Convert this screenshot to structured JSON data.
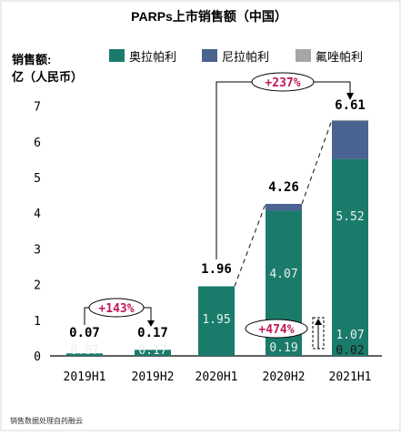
{
  "chart_data": {
    "type": "bar",
    "stacked": true,
    "title": "PARPs上市销售额（中国）",
    "ylabel_line1": "销售额:",
    "ylabel_line2": "亿（人民币）",
    "categories": [
      "2019H1",
      "2019H2",
      "2020H1",
      "2020H2",
      "2021H1"
    ],
    "series": [
      {
        "name": "奥拉帕利",
        "color": "#1a7b6b",
        "values": [
          0.07,
          0.17,
          1.95,
          4.07,
          5.52
        ],
        "labels": [
          "0.07",
          "0.17",
          "1.95",
          "4.07",
          "5.52"
        ]
      },
      {
        "name": "尼拉帕利",
        "color": "#4a6391",
        "values": [
          0,
          0,
          0,
          0.19,
          1.07
        ],
        "labels": [
          "",
          "",
          "",
          "0.19",
          "1.07"
        ]
      },
      {
        "name": "氟唑帕利",
        "color": "#a6a6a6",
        "values": [
          0,
          0,
          0,
          0,
          0.02
        ],
        "labels": [
          "",
          "",
          "",
          "",
          "0.02"
        ]
      }
    ],
    "totals": [
      "0.07",
      "0.17",
      "1.96",
      "4.26",
      "6.61"
    ],
    "ylim": [
      0,
      7
    ],
    "yticks": [
      "0",
      "1",
      "2",
      "3",
      "4",
      "5",
      "6",
      "7"
    ],
    "legend_position": "top",
    "annotations": [
      "+143%",
      "+237%",
      "+474%"
    ],
    "source": "销售数据处理自药融云"
  }
}
